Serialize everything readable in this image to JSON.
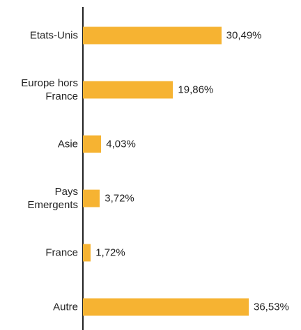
{
  "chart_data": {
    "type": "hbar",
    "categories": [
      "Etats-Unis",
      "Europe hors France",
      "Asie",
      "Pays Emergents",
      "France",
      "Autre"
    ],
    "values": [
      30.49,
      19.86,
      4.03,
      3.72,
      1.72,
      36.53
    ],
    "value_labels": [
      "30,49%",
      "19,86%",
      "4,03%",
      "3,72%",
      "1,72%",
      "36,53%"
    ],
    "color": "#f6b332"
  }
}
